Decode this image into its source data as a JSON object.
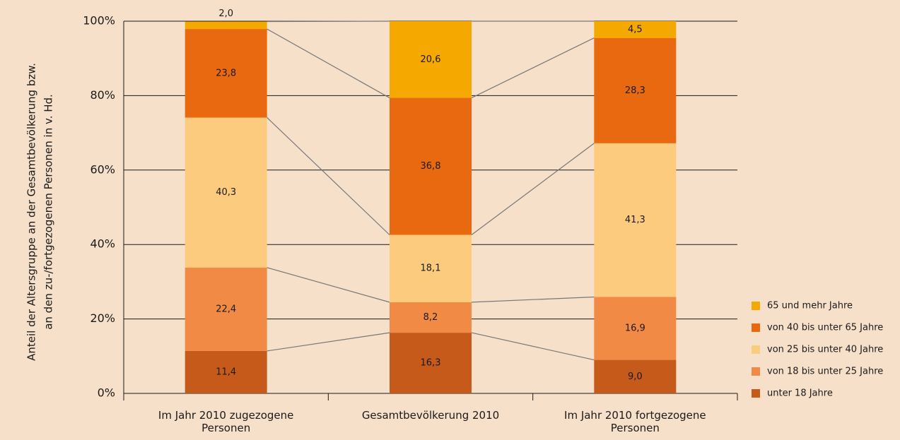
{
  "chart_data": {
    "type": "stacked_bar",
    "ylabel": [
      "Anteil der Altersgruppe an der Gesamtbevölkerung bzw.",
      "an den zu-/fortgezogenen Personen in v. Hd."
    ],
    "categories": [
      "Im Jahr 2010 zugezogene Personen",
      "Gesamtbevölkerung 2010",
      "Im Jahr 2010 fortgezogene Personen"
    ],
    "series": [
      {
        "name": "unter 18 Jahre",
        "color": "#c55a1a",
        "values": [
          11.4,
          16.3,
          9.0
        ],
        "value_labels": [
          "11,4",
          "16,3",
          "9,0"
        ]
      },
      {
        "name": "von 18 bis unter 25 Jahre",
        "color": "#f08a45",
        "values": [
          22.4,
          8.2,
          16.9
        ],
        "value_labels": [
          "22,4",
          "8,2",
          "16,9"
        ]
      },
      {
        "name": "von 25 bis unter 40 Jahre",
        "color": "#fccb7d",
        "values": [
          40.3,
          18.1,
          41.3
        ],
        "value_labels": [
          "40,3",
          "18,1",
          "41,3"
        ]
      },
      {
        "name": "von 40 bis unter 65 Jahre",
        "color": "#e8690f",
        "values": [
          23.8,
          36.8,
          28.3
        ],
        "value_labels": [
          "23,8",
          "36,8",
          "28,3"
        ]
      },
      {
        "name": "65 und mehr Jahre",
        "color": "#f5a800",
        "values": [
          2.0,
          20.6,
          4.5
        ],
        "value_labels": [
          "2,0",
          "20,6",
          "4,5"
        ]
      }
    ],
    "ylim": [
      0,
      100
    ],
    "yticks": [
      {
        "value": 0,
        "label": "0%"
      },
      {
        "value": 20,
        "label": "20%"
      },
      {
        "value": 40,
        "label": "40%"
      },
      {
        "value": 60,
        "label": "60%"
      },
      {
        "value": 80,
        "label": "80%"
      },
      {
        "value": 100,
        "label": "100%"
      }
    ],
    "grid": true,
    "legend": "lower right"
  }
}
